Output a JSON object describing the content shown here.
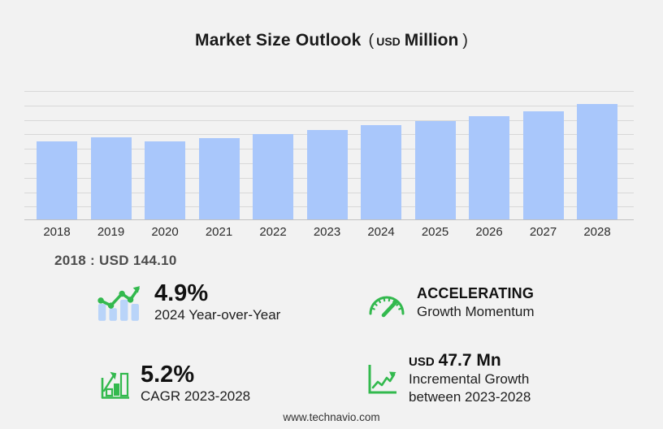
{
  "title": {
    "main": "Market Size Outlook",
    "paren_open": "(",
    "unit_small": "USD",
    "unit_big": "Million",
    "paren_close": ")"
  },
  "chart_data": {
    "type": "bar",
    "title": "Market Size Outlook (USD Million)",
    "categories": [
      "2018",
      "2019",
      "2020",
      "2021",
      "2022",
      "2023",
      "2024",
      "2025",
      "2026",
      "2027",
      "2028"
    ],
    "values": [
      144.1,
      150.9,
      143.5,
      150.2,
      156.9,
      165.4,
      173.5,
      181.6,
      190.2,
      199.5,
      213.1
    ],
    "xlabel": "",
    "ylabel": "",
    "ylim": [
      0,
      237
    ],
    "grid": true,
    "legend": false,
    "bar_color": "#a9c7fb"
  },
  "annotation": {
    "base_year": "2018 : USD  144.10"
  },
  "stats": [
    {
      "icon": "yoy-chart-icon",
      "value": "4.9%",
      "label": "2024 Year-over-Year"
    },
    {
      "icon": "speedometer-icon",
      "value": "ACCELERATING",
      "label": "Growth Momentum"
    },
    {
      "icon": "cagr-chart-icon",
      "value": "5.2%",
      "label": "CAGR 2023-2028"
    },
    {
      "icon": "incremental-growth-icon",
      "value_prefix": "USD",
      "value": "47.7 Mn",
      "label": "Incremental Growth",
      "label2": "between 2023-2028"
    }
  ],
  "footer": {
    "website": "www.technavio.com"
  },
  "colors": {
    "background": "#f2f2f2",
    "bar": "#a9c7fb",
    "grid": "#d8d8d8",
    "axis": "#c2c2c2",
    "green": "#33b94e",
    "icon_bar_blue": "#b9d4f9"
  }
}
